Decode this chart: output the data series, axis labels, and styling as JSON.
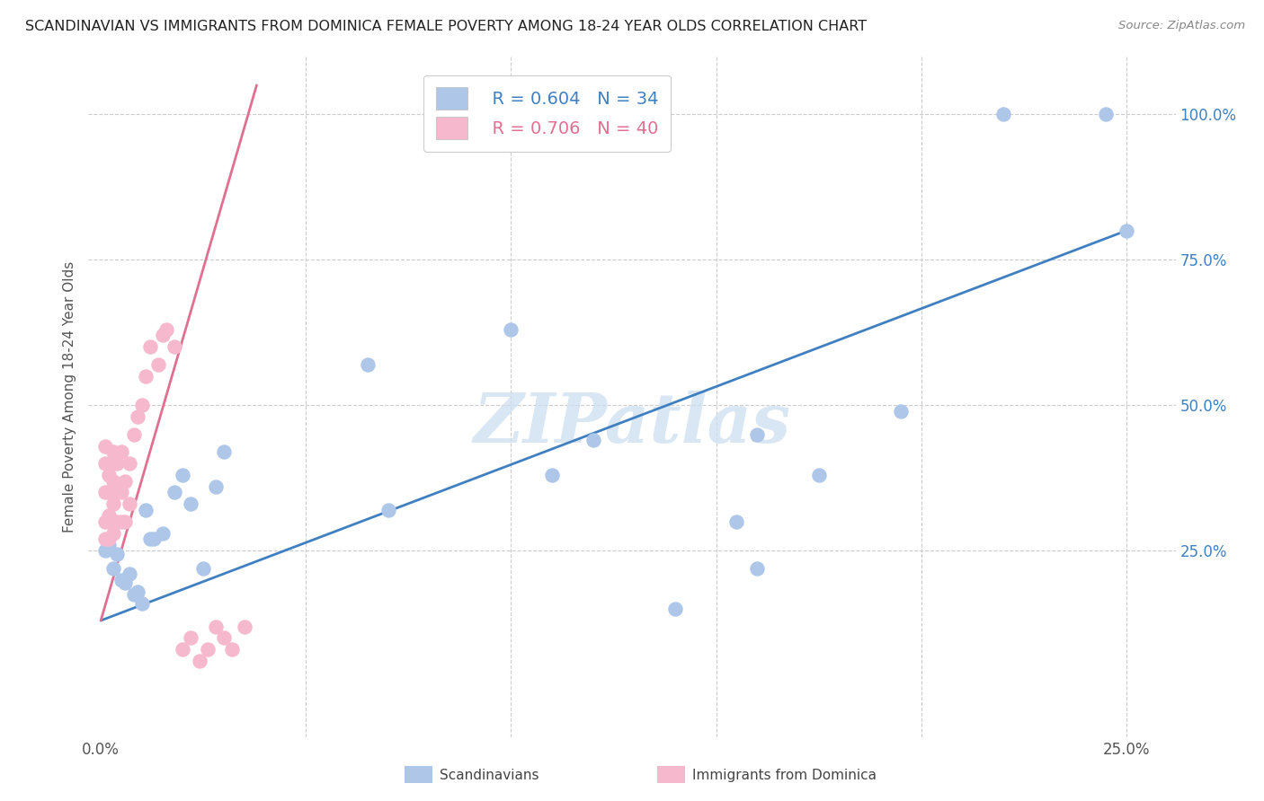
{
  "title": "SCANDINAVIAN VS IMMIGRANTS FROM DOMINICA FEMALE POVERTY AMONG 18-24 YEAR OLDS CORRELATION CHART",
  "source": "Source: ZipAtlas.com",
  "ylabel": "Female Poverty Among 18-24 Year Olds",
  "legend_blue_r": "R = 0.604",
  "legend_blue_n": "N = 34",
  "legend_pink_r": "R = 0.706",
  "legend_pink_n": "N = 40",
  "legend_label_blue": "Scandinavians",
  "legend_label_pink": "Immigrants from Dominica",
  "blue_color": "#aec6e8",
  "pink_color": "#f5b8cc",
  "blue_line_color": "#4080c0",
  "pink_line_color": "#e07090",
  "watermark": "ZIPatlas",
  "xlim": [
    -0.003,
    0.262
  ],
  "ylim": [
    -0.07,
    1.1
  ],
  "blue_reg": [
    0.0,
    0.25,
    0.13,
    0.8
  ],
  "pink_reg": [
    0.0,
    0.038,
    0.13,
    1.05
  ],
  "blue_x": [
    0.001,
    0.002,
    0.003,
    0.004,
    0.005,
    0.006,
    0.007,
    0.008,
    0.009,
    0.01,
    0.011,
    0.012,
    0.013,
    0.015,
    0.018,
    0.02,
    0.022,
    0.025,
    0.028,
    0.03,
    0.065,
    0.07,
    0.1,
    0.11,
    0.12,
    0.14,
    0.155,
    0.16,
    0.175,
    0.195,
    0.16,
    0.22,
    0.245,
    0.25
  ],
  "blue_y": [
    0.25,
    0.26,
    0.22,
    0.245,
    0.2,
    0.195,
    0.21,
    0.175,
    0.18,
    0.16,
    0.32,
    0.27,
    0.27,
    0.28,
    0.35,
    0.38,
    0.33,
    0.22,
    0.36,
    0.42,
    0.57,
    0.32,
    0.63,
    0.38,
    0.44,
    0.15,
    0.3,
    0.22,
    0.38,
    0.49,
    0.45,
    1.0,
    1.0,
    0.8
  ],
  "pink_x": [
    0.001,
    0.001,
    0.001,
    0.001,
    0.001,
    0.002,
    0.002,
    0.002,
    0.002,
    0.003,
    0.003,
    0.003,
    0.003,
    0.004,
    0.004,
    0.004,
    0.005,
    0.005,
    0.005,
    0.006,
    0.006,
    0.007,
    0.007,
    0.008,
    0.009,
    0.01,
    0.011,
    0.012,
    0.014,
    0.015,
    0.016,
    0.018,
    0.02,
    0.022,
    0.024,
    0.026,
    0.028,
    0.03,
    0.032,
    0.035
  ],
  "pink_y": [
    0.27,
    0.3,
    0.35,
    0.4,
    0.43,
    0.27,
    0.31,
    0.35,
    0.38,
    0.28,
    0.33,
    0.37,
    0.42,
    0.3,
    0.35,
    0.4,
    0.3,
    0.35,
    0.42,
    0.3,
    0.37,
    0.33,
    0.4,
    0.45,
    0.48,
    0.5,
    0.55,
    0.6,
    0.57,
    0.62,
    0.63,
    0.6,
    0.08,
    0.1,
    0.06,
    0.08,
    0.12,
    0.1,
    0.08,
    0.12
  ]
}
